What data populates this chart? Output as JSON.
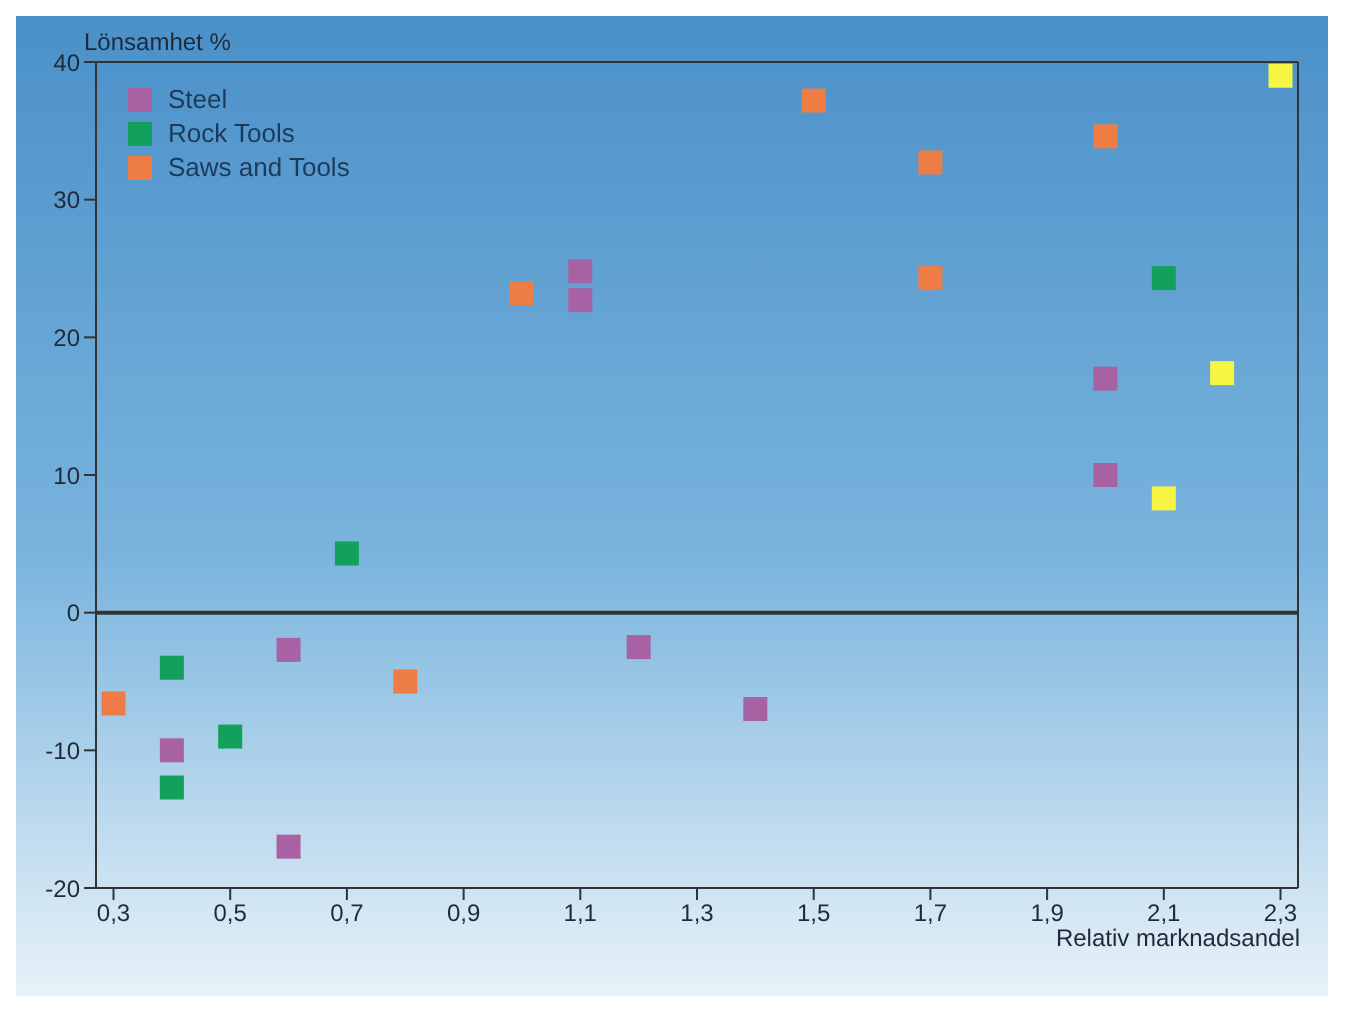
{
  "chart_data": {
    "type": "scatter",
    "ylabel": "Lönsamhet %",
    "xlabel": "Relativ marknadsandel",
    "xlim": [
      0.27,
      2.33
    ],
    "xticks": [
      {
        "value": 0.3,
        "label": "0,3"
      },
      {
        "value": 0.5,
        "label": "0,5"
      },
      {
        "value": 0.7,
        "label": "0,7"
      },
      {
        "value": 0.9,
        "label": "0,9"
      },
      {
        "value": 1.1,
        "label": "1,1"
      },
      {
        "value": 1.3,
        "label": "1,3"
      },
      {
        "value": 1.5,
        "label": "1,5"
      },
      {
        "value": 1.7,
        "label": "1,7"
      },
      {
        "value": 1.9,
        "label": "1,9"
      },
      {
        "value": 2.1,
        "label": "2,1"
      },
      {
        "value": 2.3,
        "label": "2,3"
      }
    ],
    "ylim": [
      -20,
      40
    ],
    "yticks": [
      -20,
      -10,
      0,
      10,
      20,
      30,
      40
    ],
    "marker": "square",
    "legend": "top left",
    "grid": false,
    "ref_lines": [
      {
        "axis": "y",
        "value": 0,
        "color": "#333333"
      }
    ],
    "series": [
      {
        "color": "#f5f542",
        "x": [
          2.3,
          2.2,
          2.1
        ],
        "values": [
          39,
          17.4,
          8.3
        ]
      },
      {
        "name": "Steel",
        "color": "#a862a3",
        "x": [
          0.4,
          0.6,
          0.6,
          1.1,
          1.1,
          1.2,
          1.4,
          2.0,
          2.0
        ],
        "values": [
          -10,
          -17,
          -2.7,
          24.8,
          22.7,
          -2.5,
          -7,
          17,
          10
        ]
      },
      {
        "name": "Rock Tools",
        "color": "#12a05c",
        "x": [
          0.4,
          0.4,
          0.5,
          0.7,
          2.1
        ],
        "values": [
          -4,
          -12.7,
          -9,
          4.3,
          24.3
        ]
      },
      {
        "name": "Saws and Tools",
        "color": "#ee7d45",
        "x": [
          0.3,
          0.8,
          1.0,
          1.5,
          1.7,
          1.7,
          2.0
        ],
        "values": [
          -6.6,
          -5,
          23.2,
          37.2,
          32.7,
          24.3,
          34.6
        ]
      }
    ]
  }
}
